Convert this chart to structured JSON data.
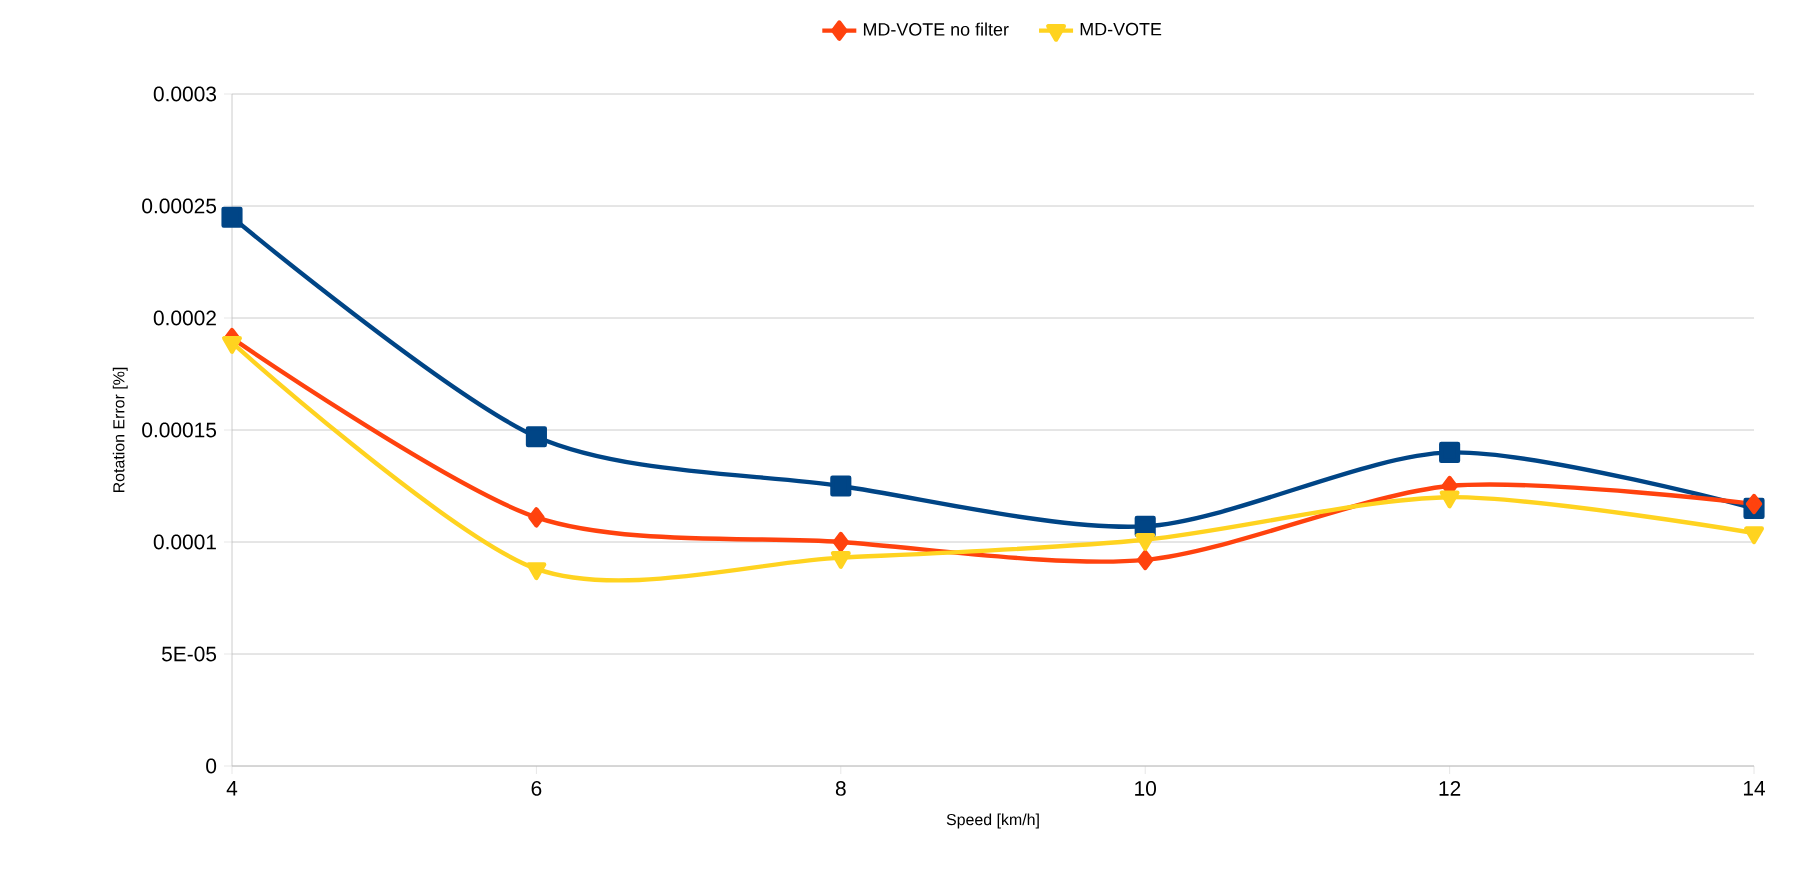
{
  "chart_data": {
    "type": "line",
    "xlabel": "Speed [km/h]",
    "ylabel": "Rotation Error [%]",
    "x": [
      4,
      6,
      8,
      10,
      12,
      14
    ],
    "series": [
      {
        "color": "#004586",
        "marker": "square",
        "values": [
          0.000245,
          0.000147,
          0.000125,
          0.000107,
          0.00014,
          0.000115
        ]
      },
      {
        "name": "MD-VOTE no filter",
        "color": "#ff420e",
        "marker": "diamond",
        "values": [
          0.000191,
          0.000111,
          0.0001,
          9.2e-05,
          0.000125,
          0.000117
        ]
      },
      {
        "name": "MD-VOTE",
        "color": "#ffd320",
        "marker": "triangle",
        "values": [
          0.000189,
          8.8e-05,
          9.3e-05,
          0.000101,
          0.00012,
          0.000104
        ]
      }
    ],
    "xlim": [
      4,
      14
    ],
    "ylim": [
      0,
      0.0003
    ],
    "xticks": [
      4,
      6,
      8,
      10,
      12,
      14
    ],
    "yticks": [
      0,
      {
        "value": 5e-05,
        "label": "5E-05"
      },
      0.0001,
      0.00015,
      0.0002,
      0.00025,
      0.0003
    ],
    "grid": "y",
    "legend": "top",
    "line_style": "solid"
  }
}
